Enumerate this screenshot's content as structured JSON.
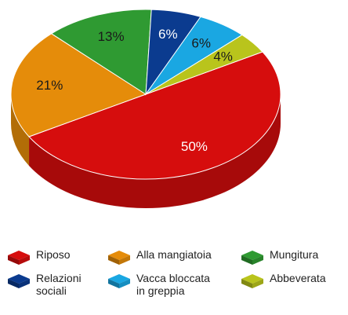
{
  "chart_data": {
    "type": "pie",
    "categories": [
      "Riposo",
      "Alla mangiatoia",
      "Mungitura",
      "Relazioni sociali",
      "Vacca bloccata in greppia",
      "Abbeverata"
    ],
    "values": [
      50,
      21,
      13,
      6,
      6,
      4
    ],
    "value_labels": [
      "50%",
      "21%",
      "13%",
      "6%",
      "6%",
      "4%"
    ],
    "colors": [
      "#d60d0d",
      "#e58c0a",
      "#2f9a32",
      "#0b3b8f",
      "#1aa7e2",
      "#b9c41c"
    ],
    "legend": "bottom"
  }
}
